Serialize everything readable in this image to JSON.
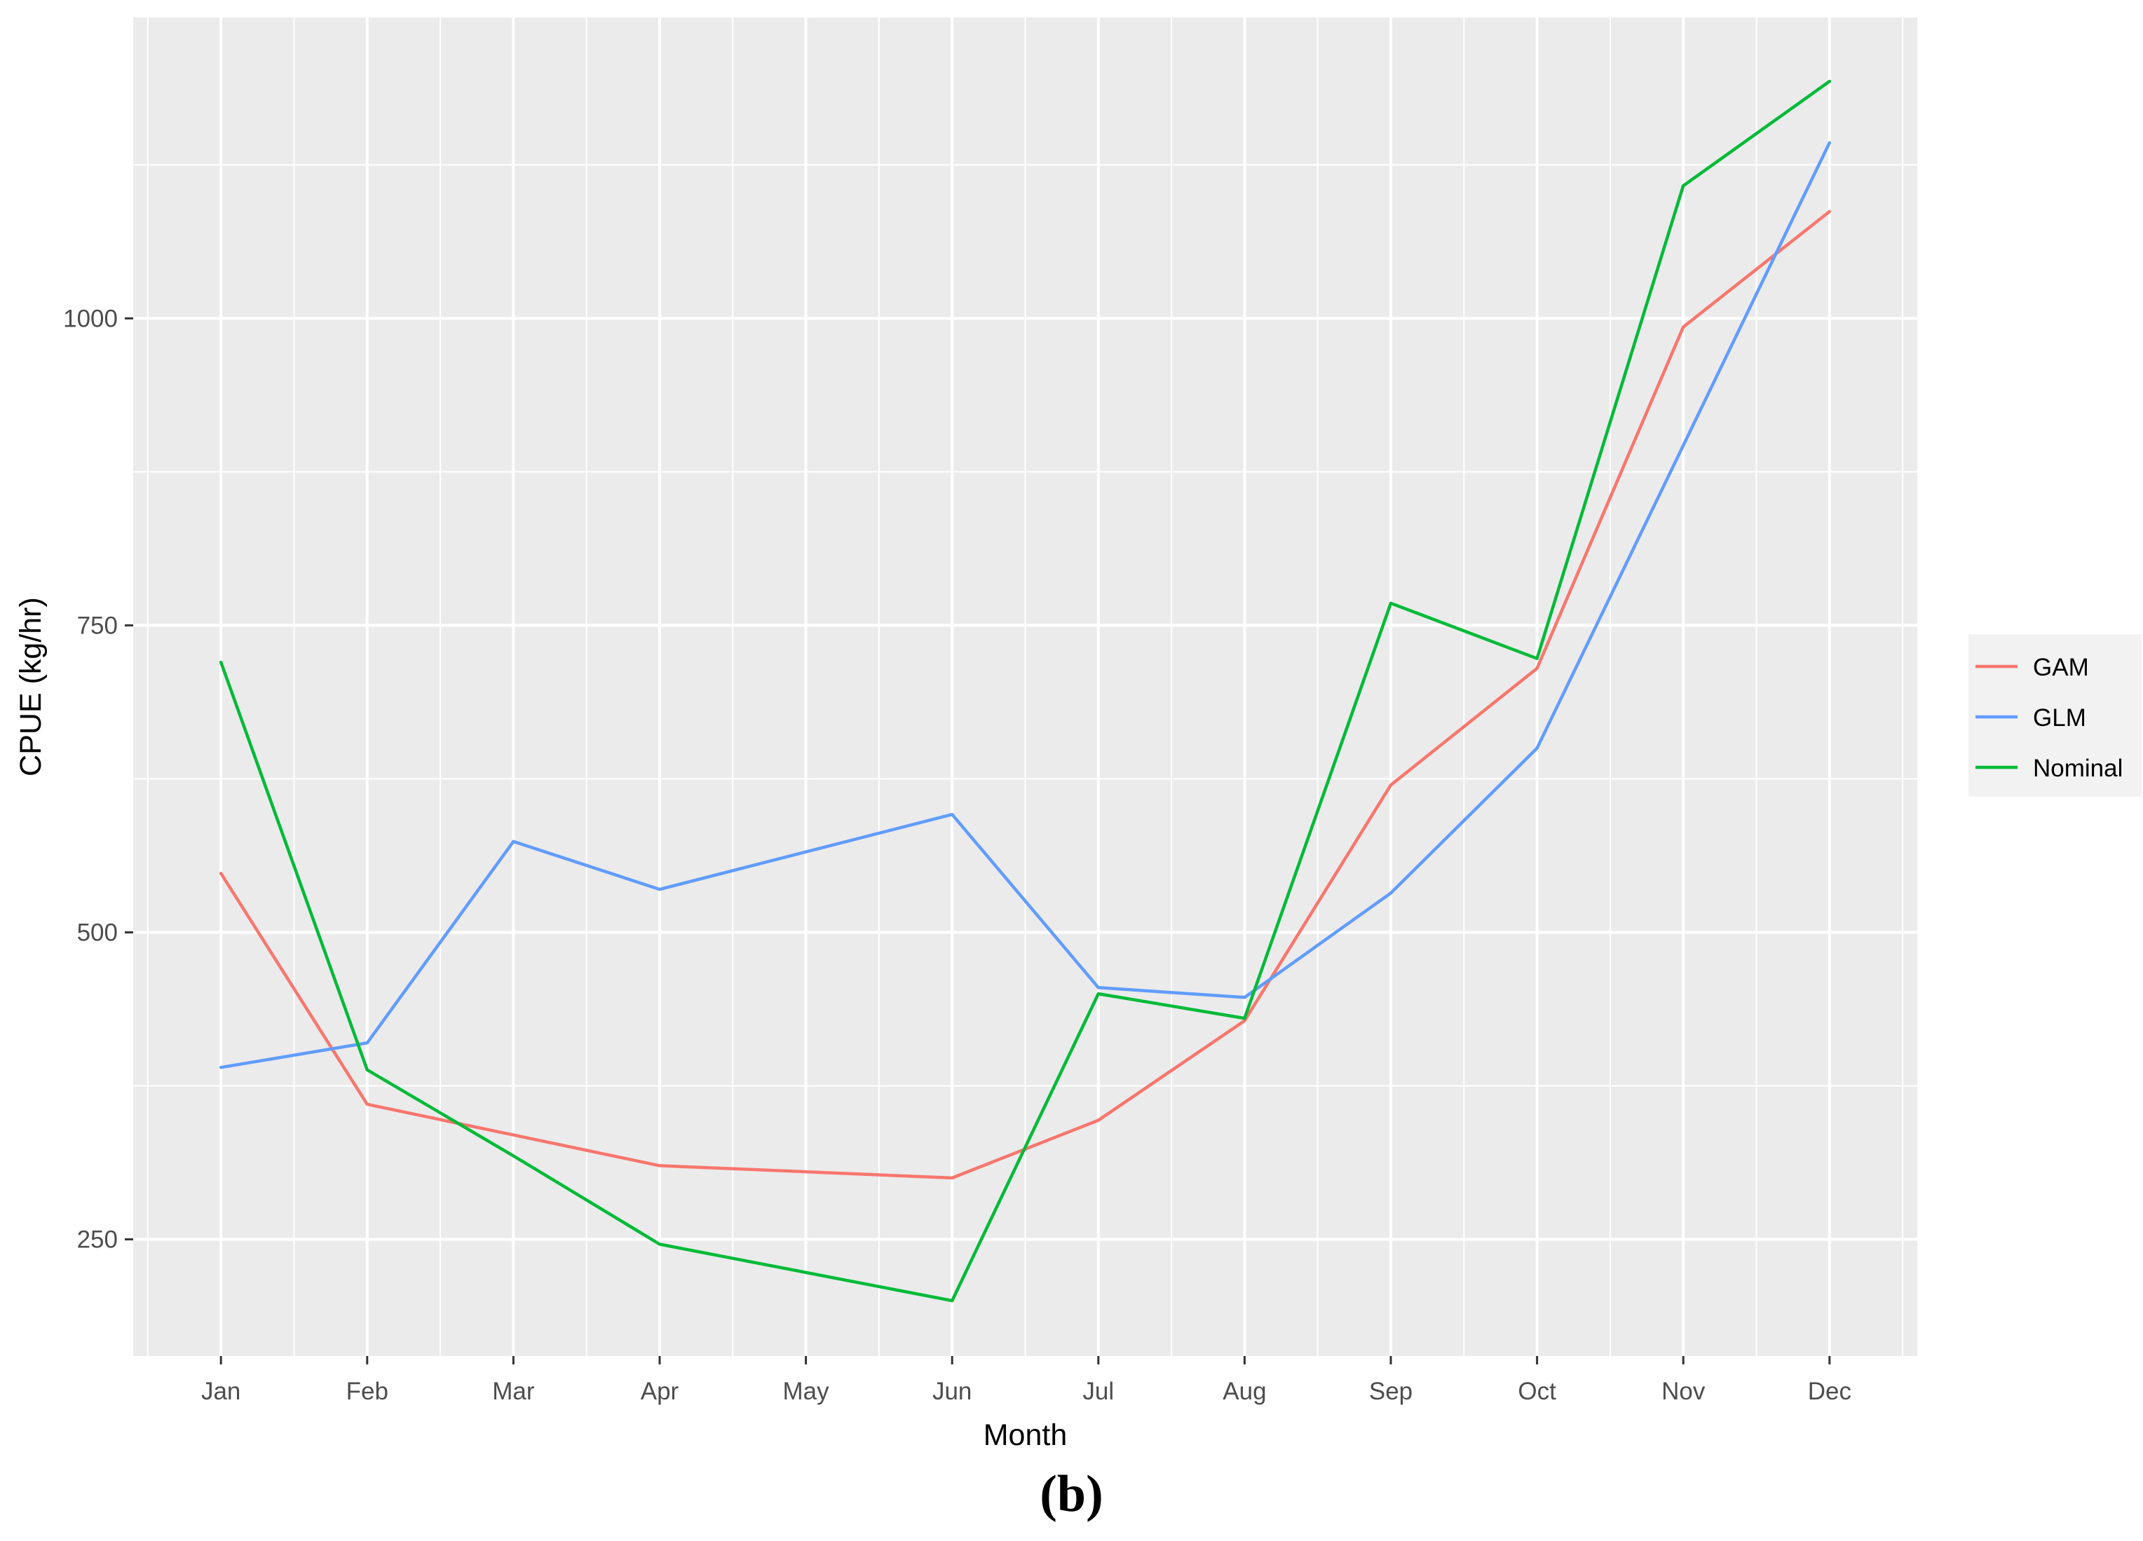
{
  "chart_data": {
    "type": "line",
    "title": "",
    "xlabel": "Month",
    "ylabel": "CPUE (kg/hr)",
    "categories": [
      "Jan",
      "Feb",
      "Mar",
      "Apr",
      "May",
      "Jun",
      "Jul",
      "Aug",
      "Sep",
      "Oct",
      "Nov",
      "Dec"
    ],
    "ylim": [
      155,
      1245
    ],
    "yticks": [
      250,
      500,
      750,
      1000
    ],
    "ytick_labels": [
      "250",
      "500",
      "750",
      "1000"
    ],
    "grid": true,
    "legend_position": "right",
    "series": [
      {
        "name": "GAM",
        "color": "#F8766D",
        "values": [
          548,
          360,
          335,
          310,
          null,
          300,
          347,
          428,
          620,
          715,
          993,
          1087
        ]
      },
      {
        "name": "GLM",
        "color": "#619CFF",
        "values": [
          390,
          410,
          574,
          535,
          null,
          596,
          455,
          447,
          532,
          650,
          null,
          1143
        ]
      },
      {
        "name": "Nominal",
        "color": "#00BA38",
        "values": [
          720,
          388,
          318,
          246,
          null,
          200,
          450,
          430,
          768,
          723,
          1108,
          1193
        ]
      }
    ]
  },
  "footer": {
    "panel_label": "(b)"
  }
}
